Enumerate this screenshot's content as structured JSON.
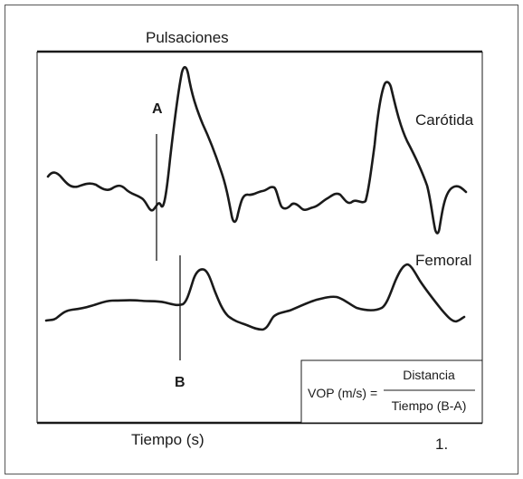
{
  "figure": {
    "title": "Pulsaciones",
    "x_axis_label": "Tiempo (s)",
    "figure_number": "1.",
    "colors": {
      "ink": "#1a1a1a",
      "background": "#ffffff",
      "frame": "#555555"
    }
  },
  "traces": {
    "carotid_label": "Carótida",
    "femoral_label": "Femoral"
  },
  "markers": {
    "a_label": "A",
    "b_label": "B"
  },
  "formula": {
    "lhs": "VOP (m/s) =",
    "numerator": "Distancia",
    "denominator": "Tiempo (B-A)"
  }
}
